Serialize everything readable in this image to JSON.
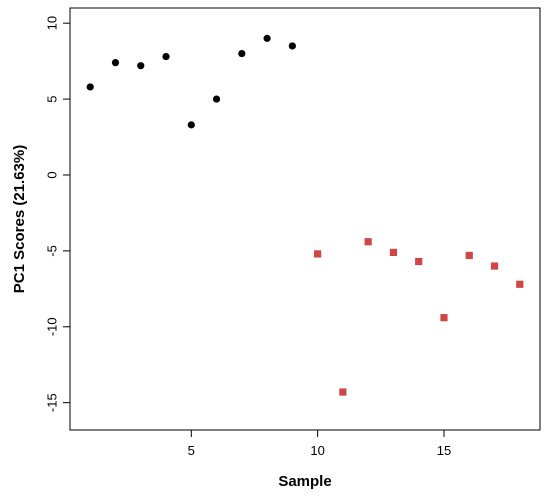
{
  "chart_data": {
    "type": "scatter",
    "title": "",
    "xlabel": "Sample",
    "ylabel": "PC1 Scores (21.63%)",
    "xlim": [
      0.2,
      18.8
    ],
    "ylim": [
      -16.8,
      11.0
    ],
    "x_ticks": [
      5,
      10,
      15
    ],
    "y_ticks": [
      10,
      5,
      0,
      -5,
      -10,
      -15
    ],
    "x_tick_labels": [
      "5",
      "10",
      "15"
    ],
    "y_tick_labels": [
      "10",
      "5",
      "0",
      "-5",
      "-10",
      "-15"
    ],
    "grid": false,
    "legend": "none",
    "series": [
      {
        "marker": "circle",
        "color": "#000000",
        "x": [
          1,
          2,
          3,
          4,
          5,
          6,
          7,
          8,
          9
        ],
        "y": [
          5.8,
          7.4,
          7.2,
          7.8,
          3.3,
          5.0,
          8.0,
          9.0,
          8.5
        ]
      },
      {
        "marker": "square",
        "color": "#d04545",
        "x": [
          10,
          11,
          12,
          13,
          14,
          15,
          16,
          17,
          18
        ],
        "y": [
          -5.2,
          -14.3,
          -4.4,
          -5.1,
          -5.7,
          -9.4,
          -5.3,
          -6.0,
          -7.2
        ]
      }
    ]
  }
}
